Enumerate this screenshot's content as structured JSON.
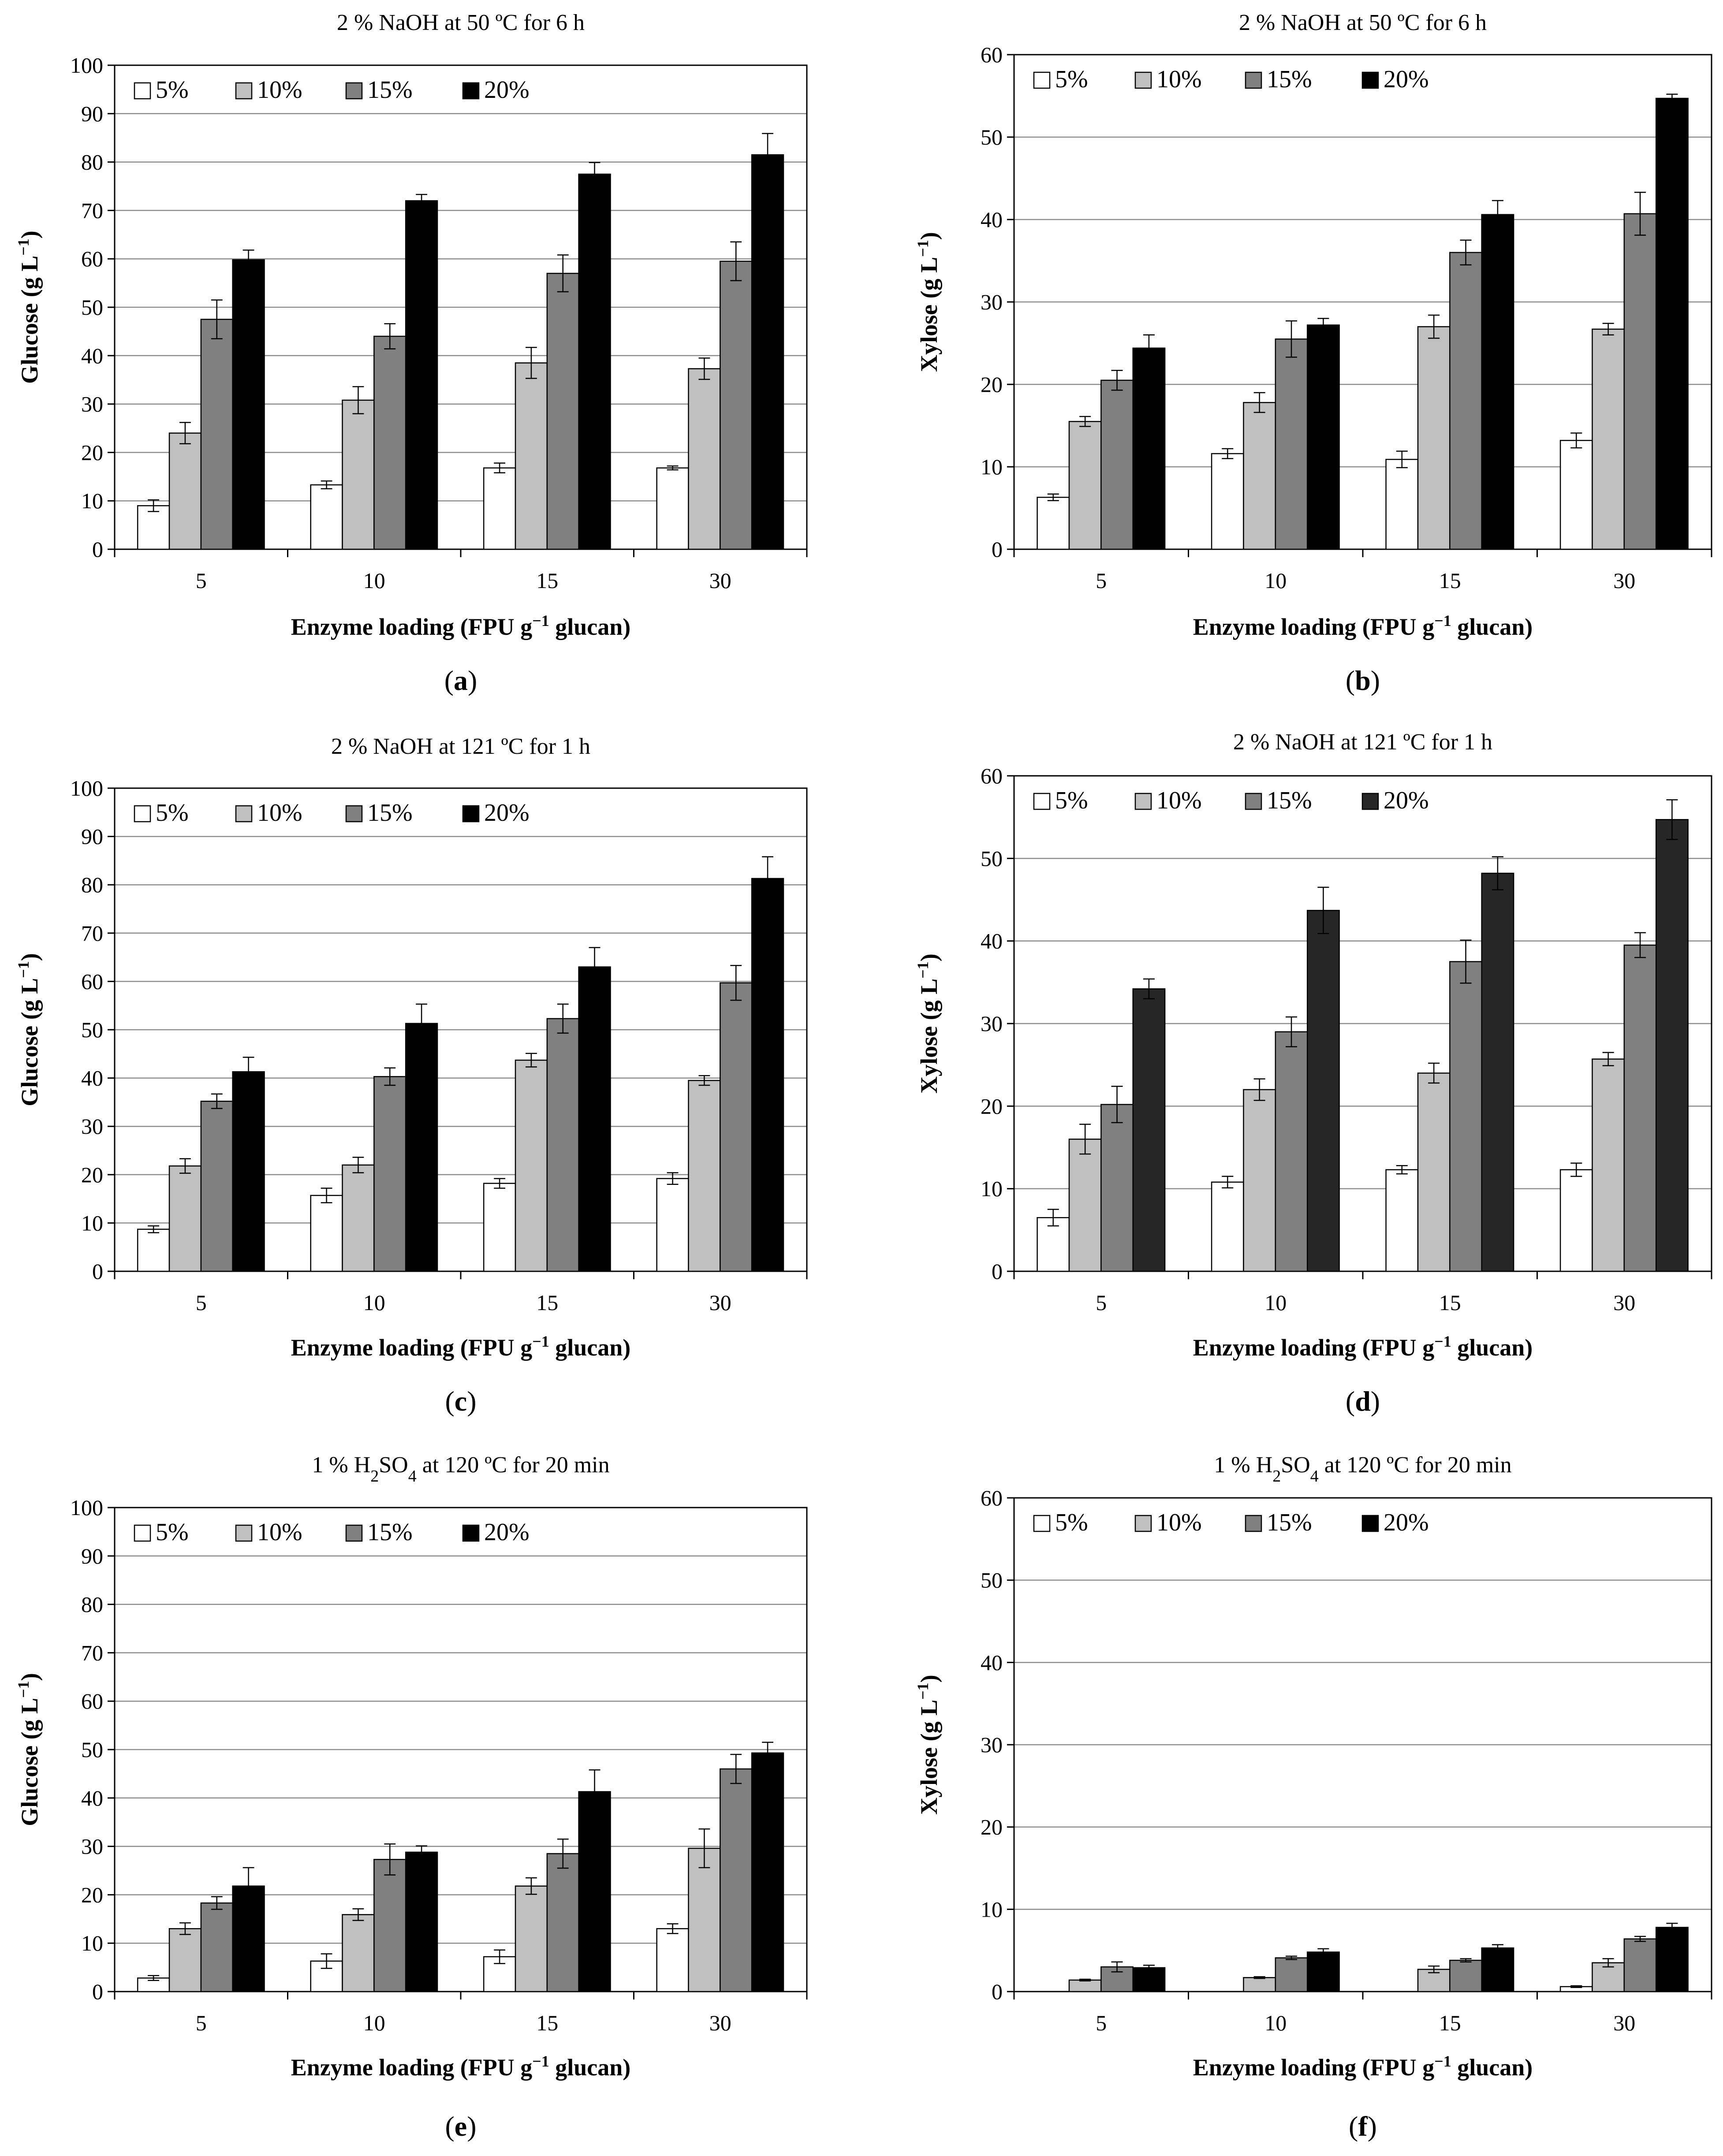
{
  "figure": {
    "colors": {
      "5%": "#ffffff",
      "10%": "#c0c0c0",
      "15%": "#808080",
      "20%": "#000000",
      "20%_dark": "#262626",
      "grid": "#8c8c8c",
      "stroke": "#000000"
    }
  },
  "chart_data": [
    {
      "panel": "a",
      "panel_label": {
        "open": "(",
        "letter": "a",
        "close": ")"
      },
      "type": "bar",
      "title": "2 % NaOH at 50 ºC for 6 h",
      "xlabel": "Enzyme loading  (FPU g⁻¹ glucan)",
      "ylabel": "Glucose (g L⁻¹)",
      "categories": [
        "5",
        "10",
        "15",
        "30"
      ],
      "ylim": [
        0,
        100
      ],
      "yticks": [
        "0",
        "10",
        "20",
        "30",
        "40",
        "50",
        "60",
        "70",
        "80",
        "90",
        "100"
      ],
      "ytick_values": [
        0,
        10,
        20,
        30,
        40,
        50,
        60,
        70,
        80,
        90,
        100
      ],
      "legend": [
        "5%",
        "10%",
        "15%",
        "20%"
      ],
      "series": [
        {
          "name": "5%",
          "values": [
            9.0,
            13.3,
            16.8,
            16.8
          ],
          "errors": [
            1.2,
            0.8,
            1.0,
            0.4
          ]
        },
        {
          "name": "10%",
          "values": [
            24.0,
            30.8,
            38.5,
            37.3
          ],
          "errors": [
            2.2,
            2.8,
            3.2,
            2.2
          ]
        },
        {
          "name": "15%",
          "values": [
            47.5,
            44.0,
            57.0,
            59.5
          ],
          "errors": [
            4.0,
            2.6,
            3.8,
            4.0
          ]
        },
        {
          "name": "20%",
          "values": [
            59.8,
            72.0,
            77.5,
            81.5
          ],
          "errors": [
            2.0,
            1.3,
            2.4,
            4.4
          ]
        }
      ]
    },
    {
      "panel": "b",
      "panel_label": {
        "open": "(",
        "letter": "b",
        "close": ")"
      },
      "type": "bar",
      "title": "2 % NaOH at 50 ºC for 6 h",
      "xlabel": "Enzyme loading  (FPU g⁻¹ glucan)",
      "ylabel": "Xylose  (g L⁻¹)",
      "categories": [
        "5",
        "10",
        "15",
        "30"
      ],
      "ylim": [
        0,
        60
      ],
      "yticks": [
        "0",
        "10",
        "20",
        "30",
        "40",
        "50",
        "60"
      ],
      "ytick_values": [
        0,
        10,
        20,
        30,
        40,
        50,
        60
      ],
      "legend": [
        "5%",
        "10%",
        "15%",
        "20%"
      ],
      "series": [
        {
          "name": "5%",
          "values": [
            6.3,
            11.6,
            10.9,
            13.2
          ],
          "errors": [
            0.4,
            0.6,
            1.0,
            0.9
          ]
        },
        {
          "name": "10%",
          "values": [
            15.5,
            17.8,
            27.0,
            26.7
          ],
          "errors": [
            0.6,
            1.2,
            1.4,
            0.7
          ]
        },
        {
          "name": "15%",
          "values": [
            20.5,
            25.5,
            36.0,
            40.7
          ],
          "errors": [
            1.2,
            2.2,
            1.5,
            2.6
          ]
        },
        {
          "name": "20%",
          "values": [
            24.4,
            27.2,
            40.6,
            54.7
          ],
          "errors": [
            1.6,
            0.8,
            1.7,
            0.5
          ]
        }
      ]
    },
    {
      "panel": "c",
      "panel_label": {
        "open": "(",
        "letter": "c",
        "close": ")"
      },
      "type": "bar",
      "title": "2 % NaOH at 121 ºC for 1 h",
      "xlabel": "Enzyme loading  (FPU g⁻¹ glucan)",
      "ylabel": "Glucose (g L⁻¹)",
      "categories": [
        "5",
        "10",
        "15",
        "30"
      ],
      "ylim": [
        0,
        100
      ],
      "yticks": [
        "0",
        "10",
        "20",
        "30",
        "40",
        "50",
        "60",
        "70",
        "80",
        "90",
        "100"
      ],
      "ytick_values": [
        0,
        10,
        20,
        30,
        40,
        50,
        60,
        70,
        80,
        90,
        100
      ],
      "legend": [
        "5%",
        "10%",
        "15%",
        "20%"
      ],
      "series": [
        {
          "name": "5%",
          "values": [
            8.7,
            15.7,
            18.2,
            19.2
          ],
          "errors": [
            0.7,
            1.5,
            1.0,
            1.2
          ]
        },
        {
          "name": "10%",
          "values": [
            21.8,
            22.0,
            43.7,
            39.5
          ],
          "errors": [
            1.5,
            1.6,
            1.4,
            1.0
          ]
        },
        {
          "name": "15%",
          "values": [
            35.2,
            40.3,
            52.3,
            59.7
          ],
          "errors": [
            1.5,
            1.8,
            3.0,
            3.6
          ]
        },
        {
          "name": "20%",
          "values": [
            41.3,
            51.3,
            63.0,
            81.3
          ],
          "errors": [
            3.0,
            4.0,
            4.0,
            4.5
          ]
        }
      ]
    },
    {
      "panel": "d",
      "panel_label": {
        "open": "(",
        "letter": "d",
        "close": ")"
      },
      "type": "bar",
      "title": "2 % NaOH at 121 ºC for 1 h",
      "xlabel": "Enzyme loading  (FPU g⁻¹ glucan)",
      "ylabel": "Xylose  (g L⁻¹)",
      "categories": [
        "5",
        "10",
        "15",
        "30"
      ],
      "ylim": [
        0,
        60
      ],
      "yticks": [
        "0",
        "10",
        "20",
        "30",
        "40",
        "50",
        "60"
      ],
      "ytick_values": [
        0,
        10,
        20,
        30,
        40,
        50,
        60
      ],
      "legend": [
        "5%",
        "10%",
        "15%",
        "20%"
      ],
      "series": [
        {
          "name": "5%",
          "values": [
            6.5,
            10.8,
            12.3,
            12.3
          ],
          "errors": [
            1.0,
            0.7,
            0.5,
            0.8
          ]
        },
        {
          "name": "10%",
          "values": [
            16.0,
            22.0,
            24.0,
            25.7
          ],
          "errors": [
            1.8,
            1.3,
            1.2,
            0.8
          ]
        },
        {
          "name": "15%",
          "values": [
            20.2,
            29.0,
            37.5,
            39.5
          ],
          "errors": [
            2.2,
            1.8,
            2.6,
            1.5
          ]
        },
        {
          "name": "20%",
          "values": [
            34.2,
            43.7,
            48.2,
            54.7
          ],
          "errors": [
            1.2,
            2.8,
            2.0,
            2.4
          ]
        }
      ]
    },
    {
      "panel": "e",
      "panel_label": {
        "open": "(",
        "letter": "e",
        "close": ")"
      },
      "type": "bar",
      "title": "1 % H₂SO₄ at 120 ºC for 20 min",
      "xlabel": "Enzyme loading  (FPU g⁻¹ glucan)",
      "ylabel": "Glucose (g L⁻¹)",
      "categories": [
        "5",
        "10",
        "15",
        "30"
      ],
      "ylim": [
        0,
        100
      ],
      "yticks": [
        "0",
        "10",
        "20",
        "30",
        "40",
        "50",
        "60",
        "70",
        "80",
        "90",
        "100"
      ],
      "ytick_values": [
        0,
        10,
        20,
        30,
        40,
        50,
        60,
        70,
        80,
        90,
        100
      ],
      "legend": [
        "5%",
        "10%",
        "15%",
        "20%"
      ],
      "series": [
        {
          "name": "5%",
          "values": [
            2.8,
            6.3,
            7.2,
            13.0
          ],
          "errors": [
            0.5,
            1.5,
            1.4,
            1.0
          ]
        },
        {
          "name": "10%",
          "values": [
            13.0,
            15.9,
            21.8,
            29.6
          ],
          "errors": [
            1.2,
            1.2,
            1.7,
            4.0
          ]
        },
        {
          "name": "15%",
          "values": [
            18.3,
            27.3,
            28.5,
            46.0
          ],
          "errors": [
            1.3,
            3.2,
            3.0,
            3.0
          ]
        },
        {
          "name": "20%",
          "values": [
            21.8,
            28.8,
            41.3,
            49.3
          ],
          "errors": [
            3.8,
            1.3,
            4.5,
            2.2
          ]
        }
      ]
    },
    {
      "panel": "f",
      "panel_label": {
        "open": "(",
        "letter": "f",
        "close": ")"
      },
      "type": "bar",
      "title": "1 % H₂SO₄ at 120 ºC for 20 min",
      "xlabel": "Enzyme loading  (FPU g⁻¹ glucan)",
      "ylabel": "Xylose  (g L⁻¹)",
      "categories": [
        "5",
        "10",
        "15",
        "30"
      ],
      "ylim": [
        0,
        60
      ],
      "yticks": [
        "0",
        "10",
        "20",
        "30",
        "40",
        "50",
        "60"
      ],
      "ytick_values": [
        0,
        10,
        20,
        30,
        40,
        50,
        60
      ],
      "legend": [
        "5%",
        "10%",
        "15%",
        "20%"
      ],
      "series": [
        {
          "name": "5%",
          "values": [
            0.0,
            0.0,
            0.0,
            0.6
          ],
          "errors": [
            0,
            0,
            0,
            0.1
          ]
        },
        {
          "name": "10%",
          "values": [
            1.4,
            1.7,
            2.7,
            3.5
          ],
          "errors": [
            0.1,
            0.1,
            0.4,
            0.5
          ]
        },
        {
          "name": "15%",
          "values": [
            3.0,
            4.1,
            3.8,
            6.4
          ],
          "errors": [
            0.6,
            0.2,
            0.2,
            0.3
          ]
        },
        {
          "name": "20%",
          "values": [
            2.9,
            4.8,
            5.3,
            7.8
          ],
          "errors": [
            0.3,
            0.4,
            0.4,
            0.5
          ]
        }
      ]
    }
  ]
}
